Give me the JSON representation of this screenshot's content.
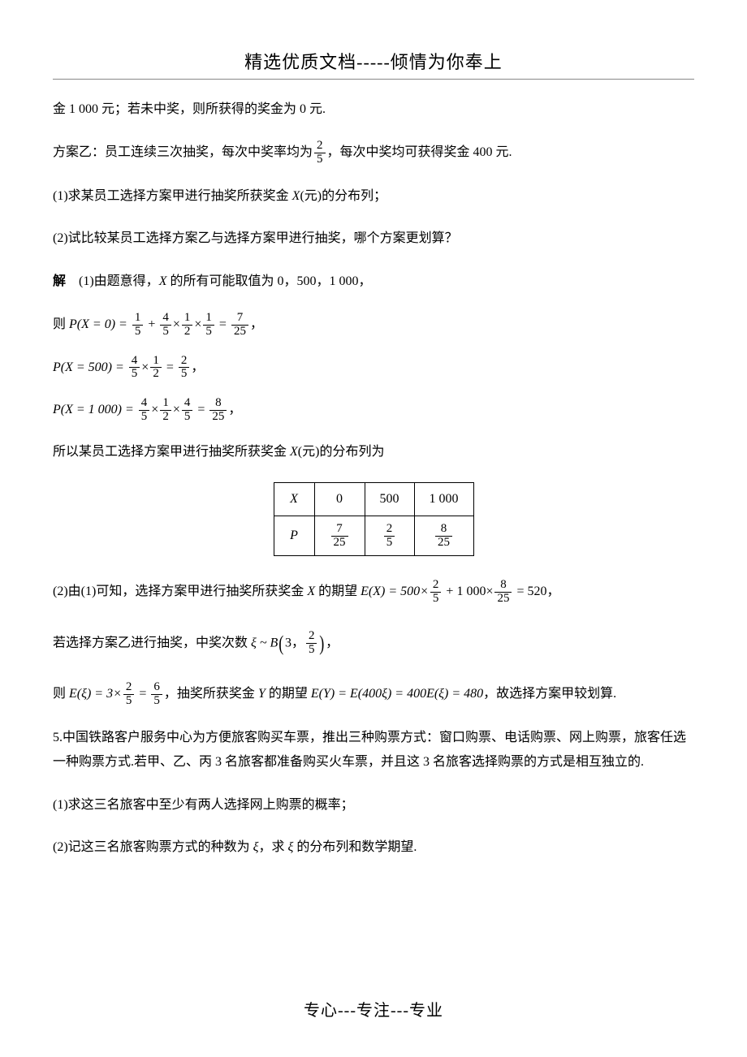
{
  "header": {
    "title": "精选优质文档-----倾情为你奉上"
  },
  "footer": {
    "text": "专心---专注---专业"
  },
  "p1": "金 1 000 元；若未中奖，则所获得的奖金为 0 元.",
  "p2a": "方案乙：员工连续三次抽奖，每次中奖率均为",
  "p2b": "，每次中奖均可获得奖金 400 元.",
  "frac25": {
    "n": "2",
    "d": "5"
  },
  "q1": "(1)求某员工选择方案甲进行抽奖所获奖金 ",
  "q1x": "X",
  "q1b": "(元)的分布列；",
  "q2": "(2)试比较某员工选择方案乙与选择方案甲进行抽奖，哪个方案更划算？",
  "sol_head_a": "解",
  "sol_head_b": "　(1)由题意得，",
  "sol_head_x": "X ",
  "sol_head_c": "的所有可能取值为 0，500，1 000，",
  "px0_a": "则 ",
  "px0_lbl": "P(X = 0) = ",
  "f15": {
    "n": "1",
    "d": "5"
  },
  "f45": {
    "n": "4",
    "d": "5"
  },
  "f12": {
    "n": "1",
    "d": "2"
  },
  "f725": {
    "n": "7",
    "d": "25"
  },
  "px500_lbl": "P(X = 500) = ",
  "f25": {
    "n": "2",
    "d": "5"
  },
  "px1000_lbl": "P(X = 1 000) = ",
  "f825": {
    "n": "8",
    "d": "25"
  },
  "dist_caption_a": "所以某员工选择方案甲进行抽奖所获奖金 ",
  "dist_caption_x": "X",
  "dist_caption_b": "(元)的分布列为",
  "table": {
    "h0": "X",
    "h1": "0",
    "h2": "500",
    "h3": "1 000",
    "r0": "P"
  },
  "p2_1a": "(2)由(1)可知，选择方案甲进行抽奖所获奖金 ",
  "p2_1x": "X ",
  "p2_1b": "的期望 ",
  "p2_1ex": "E(X) = 500×",
  "p2_1c": " + 1 000×",
  "p2_1d": " = 520，",
  "p3a": "若选择方案乙进行抽奖，中奖次数 ",
  "p3xi": "ξ ~ B",
  "p3_inner_a": "3，",
  "p4a": "则 ",
  "p4ex": "E(ξ) = 3×",
  "f65": {
    "n": "6",
    "d": "5"
  },
  "p4b": "，抽奖所获奖金 ",
  "p4y": "Y ",
  "p4c": "的期望 ",
  "p4ey": "E(Y) = E(400ξ) = 400E(ξ) = 480",
  "p4d": "，故选择方案甲较划算.",
  "q5": "5.中国铁路客户服务中心为方便旅客购买车票，推出三种购票方式：窗口购票、电话购票、网上购票，旅客任选一种购票方式.若甲、乙、丙 3 名旅客都准备购买火车票，并且这 3 名旅客选择购票的方式是相互独立的.",
  "q5_1": "(1)求这三名旅客中至少有两人选择网上购票的概率；",
  "q5_2a": "(2)记这三名旅客购票方式的种数为 ",
  "q5_2xi": "ξ",
  "q5_2b": "，求 ",
  "q5_2c": " 的分布列和数学期望.",
  "ops": {
    "plus": " + ",
    "times": "×",
    "eq": " = ",
    "comma": "，"
  }
}
